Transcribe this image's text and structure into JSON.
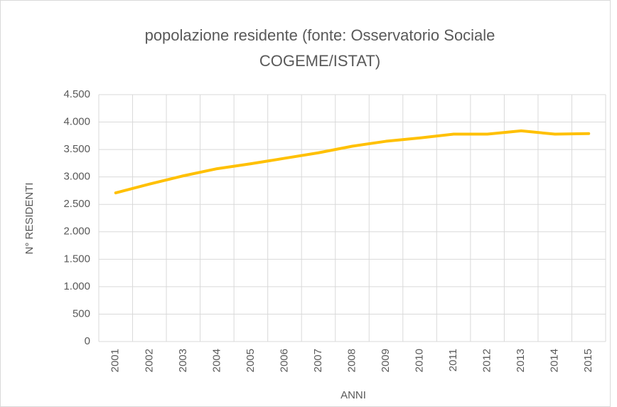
{
  "chart_data": {
    "type": "line",
    "title": "popolazione residente (fonte: Osservatorio Sociale COGEME/ISTAT)",
    "x_label": "ANNI",
    "y_label": "N° RESIDENTI",
    "categories": [
      "2001",
      "2002",
      "2003",
      "2004",
      "2005",
      "2006",
      "2007",
      "2008",
      "2009",
      "2010",
      "2011",
      "2012",
      "2013",
      "2014",
      "2015"
    ],
    "series": [
      {
        "name": "popolazione residente",
        "color": "#ffc000",
        "values": [
          2710,
          2870,
          3020,
          3150,
          3240,
          3340,
          3440,
          3560,
          3650,
          3710,
          3780,
          3780,
          3840,
          3780,
          3790
        ]
      }
    ],
    "ylim": [
      0,
      4500
    ],
    "yticks": [
      0,
      500,
      {
        "value": 1000,
        "label": "1.000"
      },
      {
        "value": 1500,
        "label": "1.500"
      },
      {
        "value": 2000,
        "label": "2.000"
      },
      {
        "value": 2500,
        "label": "2.500"
      },
      {
        "value": 3000,
        "label": "3.000"
      },
      {
        "value": 3500,
        "label": "3.500"
      },
      {
        "value": 4000,
        "label": "4.000"
      },
      {
        "value": 4500,
        "label": "4.500"
      }
    ],
    "grid": true
  }
}
